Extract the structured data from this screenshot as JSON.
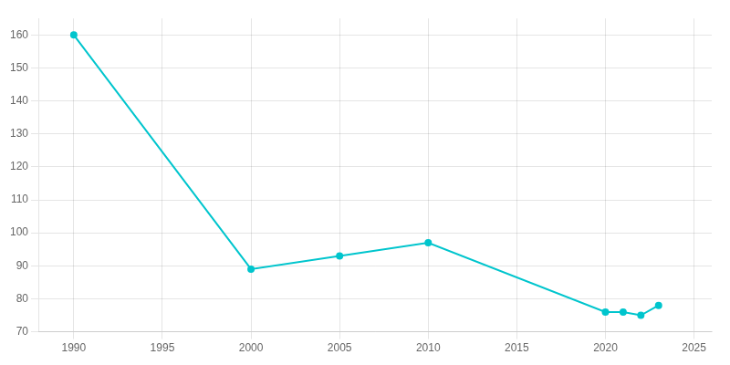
{
  "chart_data": {
    "type": "line",
    "x": [
      1990,
      2000,
      2005,
      2010,
      2020,
      2021,
      2022,
      2023
    ],
    "values": [
      160,
      89,
      93,
      97,
      76,
      76,
      75,
      78
    ],
    "color": "#00C5CD",
    "marker": "circle",
    "xlim": [
      1988,
      2026
    ],
    "xticks": [
      1990,
      1995,
      2000,
      2005,
      2010,
      2015,
      2020,
      2025
    ],
    "ylim": [
      70,
      165
    ],
    "yticks": [
      70,
      80,
      90,
      100,
      110,
      120,
      130,
      140,
      150,
      160
    ],
    "grid": true
  }
}
